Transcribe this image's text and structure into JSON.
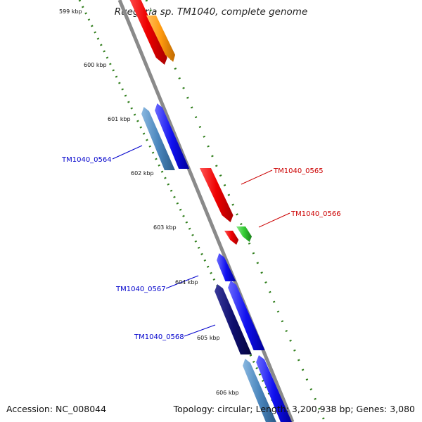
{
  "title": "Ruegeria sp. TM1040, complete genome",
  "footer": {
    "accession": "Accession: NC_008044",
    "summary": "Topology: circular; Length: 3,200,938 bp; Genes: 3,080"
  },
  "colors": {
    "backbone": "#8c8c8c",
    "tick": "#2e7d1a",
    "reverse_label": "#0000cc",
    "forward_label": "#cc0000"
  },
  "ruler": [
    "599 kbp",
    "600 kbp",
    "601 kbp",
    "602 kbp",
    "603 kbp",
    "604 kbp",
    "605 kbp",
    "606 kbp"
  ],
  "gene_labels": {
    "g0564": "TM1040_0564",
    "g0565": "TM1040_0565",
    "g0566": "TM1040_0566",
    "g0567": "TM1040_0567",
    "g0568": "TM1040_0568"
  }
}
